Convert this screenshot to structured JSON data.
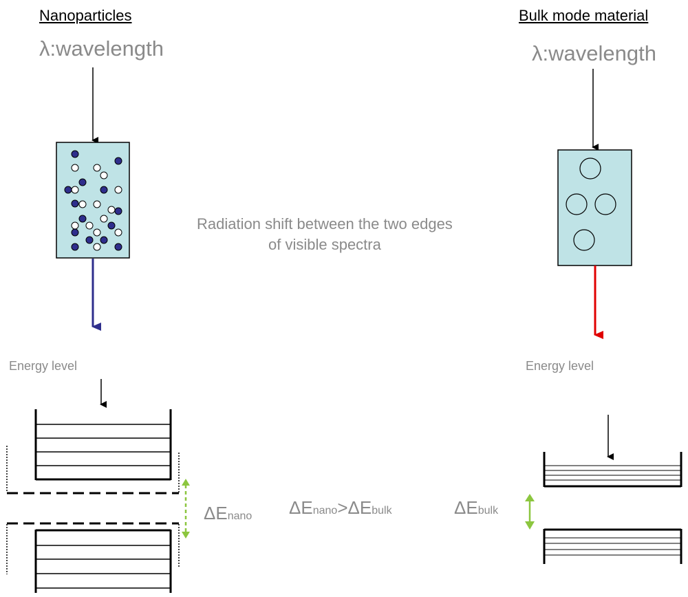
{
  "left": {
    "heading": "Nanoparticles",
    "wavelength_label": "λ:wavelength",
    "energy_label": "Energy level",
    "gap_label": {
      "delta": "ΔE",
      "sub": "nano"
    },
    "output_color": "#2e2e8c"
  },
  "right": {
    "heading": "Bulk mode material",
    "wavelength_label": "λ:wavelength",
    "energy_label": "Energy level",
    "gap_label": {
      "delta": "ΔE",
      "sub": "bulk"
    },
    "output_color": "#e00000"
  },
  "center": {
    "line1": "Radiation shift between the two edges",
    "line2": "of visible spectra",
    "comparison": {
      "d1": "ΔE",
      "s1": "nano",
      "op": ">",
      "d2": "ΔE",
      "s2": "bulk"
    }
  },
  "colors": {
    "sample_fill": "#bfe3e6",
    "filled_particle": "#2e2e8c",
    "gap_arrow": "#8cc63f",
    "text_gray": "#8a8a8a"
  }
}
